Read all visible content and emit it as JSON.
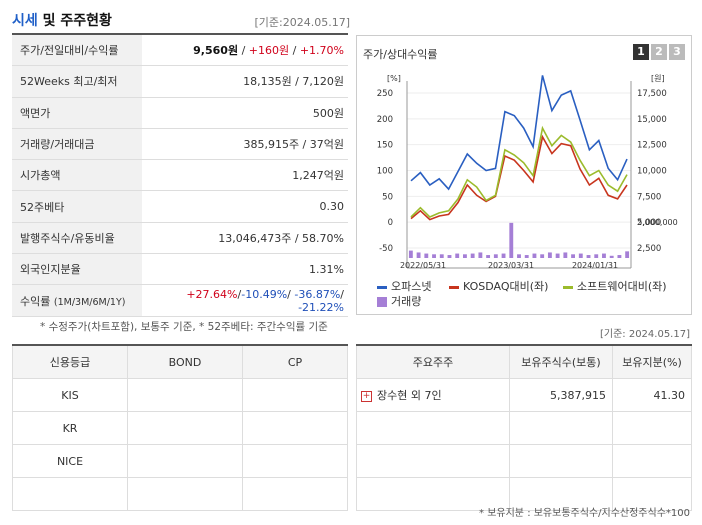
{
  "header": {
    "title_main": "시세",
    "title_rest": " 및 주주현황",
    "base_date": "[기준:2024.05.17]"
  },
  "stats": [
    {
      "label": "주가/전일대비/수익률",
      "value": "9,560원",
      "change": "+160원",
      "rate": "+1.70%"
    },
    {
      "label": "52Weeks 최고/최저",
      "value": "18,135원 / 7,120원"
    },
    {
      "label": "액면가",
      "value": "500원"
    },
    {
      "label": "거래량/거래대금",
      "value": "385,915주 / 37억원"
    },
    {
      "label": "시가총액",
      "value": "1,247억원"
    },
    {
      "label": "52주베타",
      "value": "0.30"
    },
    {
      "label": "발행주식수/유동비율",
      "value": "13,046,473주 / 58.70%"
    },
    {
      "label": "외국인지분율",
      "value": "1.31%"
    },
    {
      "label": "수익률",
      "sublabel": "(1M/3M/6M/1Y)",
      "r1": "+27.64%",
      "r2": "-10.49%",
      "r3": "-36.87%",
      "r4": "-21.22%"
    }
  ],
  "notes": {
    "left": "* 수정주가(차트포함), 보통주 기준, * 52주베타: 주간수익률 기준",
    "right": "[기준: 2024.05.17]",
    "bottom": "* 보유지분 : 보유보통주식수/지수산정주식수*100"
  },
  "chart_panel": {
    "title": "주가/상대수익률",
    "pages": [
      "1",
      "2",
      "3"
    ],
    "legend": {
      "s1": "오파스넷",
      "s2": "KOSDAQ대비(좌)",
      "s3": "소프트웨어대비(좌)",
      "s4": "거래량"
    }
  },
  "chart_data": {
    "type": "line",
    "left_unit": "[%]",
    "right_unit": "[원]",
    "y_left_ticks": [
      "250",
      "200",
      "150",
      "100",
      "50",
      "0",
      "-50"
    ],
    "y_right_ticks": [
      "17,500",
      "15,000",
      "12,500",
      "10,000",
      "7,500",
      "5,000",
      "2,500"
    ],
    "volume_tick": "2,000,000",
    "x_ticks": [
      "2022/05/31",
      "2023/03/31",
      "2024/01/31"
    ],
    "ylim_left": [
      -50,
      250
    ],
    "series": [
      {
        "name": "오파스넷",
        "color": "#2a5fc1",
        "values": [
          6500,
          7300,
          6100,
          6700,
          5700,
          7400,
          9100,
          8200,
          7500,
          7700,
          13200,
          12800,
          11600,
          9800,
          16700,
          13300,
          14800,
          15200,
          12400,
          9500,
          10400,
          7700,
          6600,
          8600
        ]
      },
      {
        "name": "KOSDAQ대비(좌)",
        "color": "#c8351e",
        "values": [
          7,
          22,
          5,
          12,
          15,
          38,
          72,
          52,
          40,
          50,
          128,
          120,
          100,
          78,
          165,
          133,
          152,
          148,
          103,
          72,
          85,
          52,
          45,
          72
        ]
      },
      {
        "name": "소프트웨어대비(좌)",
        "color": "#9bbb2c",
        "values": [
          10,
          28,
          10,
          18,
          22,
          45,
          82,
          68,
          42,
          52,
          140,
          130,
          115,
          90,
          182,
          148,
          168,
          155,
          120,
          90,
          100,
          72,
          60,
          92
        ]
      }
    ],
    "volume": [
      0.2,
      0.15,
      0.12,
      0.1,
      0.1,
      0.08,
      0.12,
      0.1,
      0.12,
      0.15,
      0.08,
      0.1,
      0.12,
      0.95,
      0.1,
      0.08,
      0.12,
      0.1,
      0.15,
      0.12,
      0.15,
      0.1,
      0.12,
      0.08,
      0.1,
      0.12,
      0.06,
      0.08,
      0.18
    ]
  },
  "credit_table": {
    "headers": [
      "신용등급",
      "BOND",
      "CP"
    ],
    "rows": [
      "KIS",
      "KR",
      "NICE",
      ""
    ]
  },
  "holder_table": {
    "headers": [
      "주요주주",
      "보유주식수(보통)",
      "보유지분(%)"
    ],
    "rows": [
      {
        "name": "장수현 외 7인",
        "shares": "5,387,915",
        "pct": "41.30"
      }
    ]
  }
}
